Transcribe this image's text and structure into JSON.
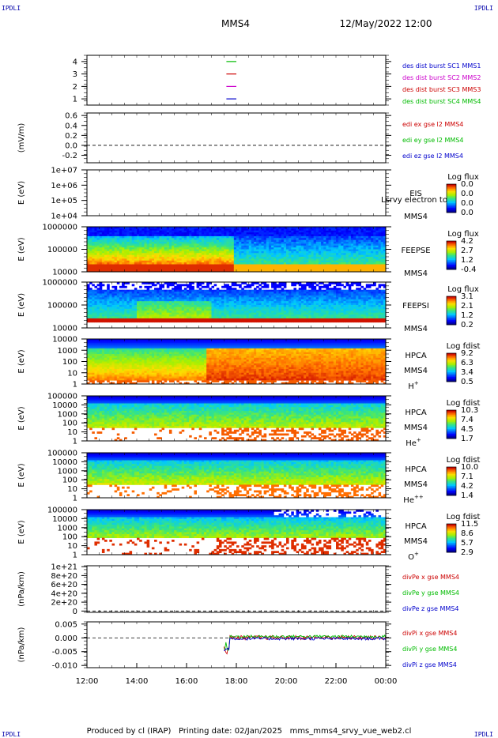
{
  "corners": {
    "tl": "IPDLI",
    "tr": "IPDLI",
    "bl": "IPDLI",
    "br": "IPDLI"
  },
  "header": {
    "spacecraft": "MMS4",
    "datetime": "12/May/2022 12:00"
  },
  "footer": {
    "producer": "Produced by cl (IRAP)",
    "date": "Printing date: 02/Jan/2025",
    "file": "mms_mms4_srvy_vue_web2.cl"
  },
  "x_axis": {
    "ticks": [
      "12:00",
      "14:00",
      "16:00",
      "18:00",
      "20:00",
      "22:00",
      "00:00"
    ]
  },
  "colors": {
    "mms1": "#0000cc",
    "mms2": "#cc00cc",
    "mms3": "#cc0000",
    "mms4": "#00bb00",
    "edi_x": "#cc0000",
    "edi_y": "#00bb00",
    "edi_z": "#0000cc"
  },
  "chart_data": [
    {
      "type": "line",
      "name": "des_dist_burst",
      "ylabel": "",
      "yticks": [
        "1",
        "2",
        "3",
        "4"
      ],
      "ylim": [
        0.5,
        4.5
      ],
      "legend": [
        "des dist burst SC1 MMS1",
        "des dist burst SC2 MMS2",
        "des dist burst SC3 MMS3",
        "des dist burst SC4 MMS4"
      ],
      "series": [
        {
          "name": "des dist burst SC1 MMS1",
          "value": 1,
          "x": [
            17.6,
            18.0
          ]
        },
        {
          "name": "des dist burst SC2 MMS2",
          "value": 2,
          "x": [
            17.6,
            18.0
          ]
        },
        {
          "name": "des dist burst SC3 MMS3",
          "value": 3,
          "x": [
            17.6,
            18.0
          ]
        },
        {
          "name": "des dist burst SC4 MMS4",
          "value": 4,
          "x": [
            17.6,
            18.0
          ]
        }
      ]
    },
    {
      "type": "line",
      "name": "edi",
      "ylabel": "(mV/m)",
      "yticks": [
        "0.6",
        "0.4",
        "0.2",
        "0.0",
        "-0.2"
      ],
      "ylim": [
        -0.35,
        0.65
      ],
      "legend": [
        "edi ex gse l2 MMS4",
        "edi ey gse l2 MMS4",
        "edi ez gse l2 MMS4"
      ]
    },
    {
      "type": "heatmap",
      "name": "eis",
      "ylabel": "E (eV)",
      "yticks": [
        "1e+07",
        "1e+06",
        "1e+05",
        "1e+04"
      ],
      "log": true,
      "labels": [
        "EIS",
        "MMS4"
      ],
      "overlay": "Lsrvy electron to",
      "colorbar": {
        "title": "Log flux",
        "ticks": [
          "0.0",
          "0.0",
          "0.0",
          "0.0"
        ]
      }
    },
    {
      "type": "heatmap",
      "name": "feepse",
      "ylabel": "E (eV)",
      "yticks": [
        "1000000",
        "100000",
        "10000"
      ],
      "log": true,
      "labels": [
        "FEEPSE",
        "MMS4"
      ],
      "colorbar": {
        "title": "Log flux",
        "ticks": [
          "4.2",
          "2.7",
          "1.2",
          "-0.4"
        ]
      }
    },
    {
      "type": "heatmap",
      "name": "feepsi",
      "ylabel": "E (eV)",
      "yticks": [
        "1000000",
        "100000",
        "10000"
      ],
      "log": true,
      "labels": [
        "FEEPSI",
        "MMS4"
      ],
      "colorbar": {
        "title": "Log flux",
        "ticks": [
          "3.1",
          "2.1",
          "1.2",
          "0.2"
        ]
      }
    },
    {
      "type": "heatmap",
      "name": "hpca_h",
      "ylabel": "E (eV)",
      "yticks": [
        "10000",
        "1000",
        "100",
        "10",
        "1"
      ],
      "log": true,
      "labels": [
        "HPCA",
        "MMS4"
      ],
      "species": "H",
      "charge": "+",
      "colorbar": {
        "title": "Log fdist",
        "ticks": [
          "9.2",
          "6.3",
          "3.4",
          "0.5"
        ]
      }
    },
    {
      "type": "heatmap",
      "name": "hpca_he",
      "ylabel": "E (eV)",
      "yticks": [
        "100000",
        "10000",
        "1000",
        "100",
        "10",
        "1"
      ],
      "log": true,
      "labels": [
        "HPCA",
        "MMS4"
      ],
      "species": "He",
      "charge": "+",
      "colorbar": {
        "title": "Log fdist",
        "ticks": [
          "10.3",
          "7.4",
          "4.5",
          "1.7"
        ]
      }
    },
    {
      "type": "heatmap",
      "name": "hpca_hepp",
      "ylabel": "E (eV)",
      "yticks": [
        "100000",
        "10000",
        "1000",
        "100",
        "10",
        "1"
      ],
      "log": true,
      "labels": [
        "HPCA",
        "MMS4"
      ],
      "species": "He",
      "charge": "++",
      "colorbar": {
        "title": "Log fdist",
        "ticks": [
          "10.0",
          "7.1",
          "4.2",
          "1.4"
        ]
      }
    },
    {
      "type": "heatmap",
      "name": "hpca_o",
      "ylabel": "E (eV)",
      "yticks": [
        "100000",
        "10000",
        "1000",
        "100",
        "10",
        "1"
      ],
      "log": true,
      "labels": [
        "HPCA",
        "MMS4"
      ],
      "species": "O",
      "charge": "+",
      "colorbar": {
        "title": "Log fdist",
        "ticks": [
          "11.5",
          "8.6",
          "5.7",
          "2.9"
        ]
      }
    },
    {
      "type": "line",
      "name": "divpe",
      "ylabel": "(nPa/km)",
      "yticks": [
        "1e+21",
        "8e+20",
        "6e+20",
        "4e+20",
        "2e+20",
        "0"
      ],
      "ylim": [
        -3e+19,
        1.02e+21
      ],
      "legend": [
        "divPe x gse MMS4",
        "divPe y gse MMS4",
        "divPe z gse MMS4"
      ]
    },
    {
      "type": "line",
      "name": "divpi",
      "ylabel": "(nPa/km)",
      "yticks": [
        "0.005",
        "0.000",
        "-0.005",
        "-0.010"
      ],
      "ylim": [
        -0.0108,
        0.0058
      ],
      "legend": [
        "divPi x gse MMS4",
        "divPi y gse MMS4",
        "divPi z gse MMS4"
      ],
      "series": [
        {
          "name": "divPi x gse MMS4",
          "x_start": 17.5,
          "x_end": 24.0,
          "mean": 0.0001,
          "range": 0.0015
        },
        {
          "name": "divPi y gse MMS4",
          "x_start": 17.5,
          "x_end": 24.0,
          "mean": 0.0005,
          "range": 0.001
        },
        {
          "name": "divPi z gse MMS4",
          "x_start": 17.5,
          "x_end": 24.0,
          "mean": -0.0003,
          "range": 0.001
        }
      ]
    }
  ]
}
